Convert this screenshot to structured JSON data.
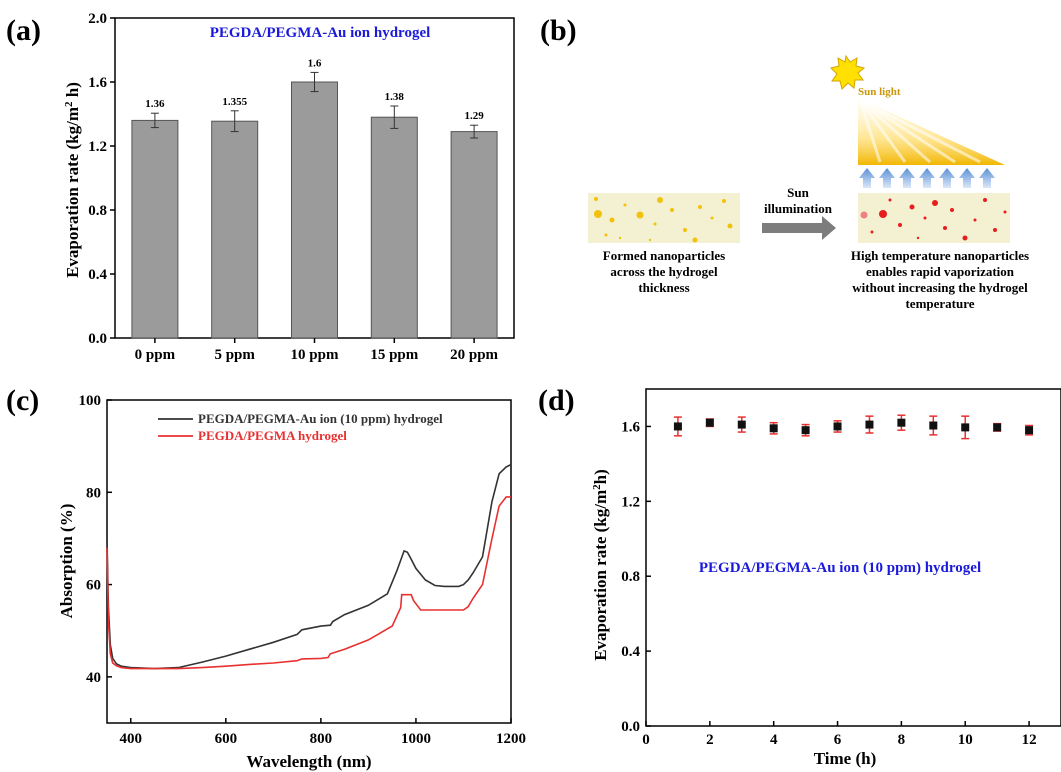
{
  "panels": {
    "a": {
      "label": "(a)",
      "title": "PEGDA/PEGMA-Au ion hydrogel",
      "y_title_main": "Evaporation rate (kg/m",
      "y_title_sup": "2",
      "y_title_end": " h)"
    },
    "b": {
      "label": "(b)",
      "sun_label": "Sun light",
      "arrow_label": [
        "Sun",
        "illumination"
      ],
      "left_caption": [
        "Formed nanoparticles",
        "across the hydrogel",
        "thickness"
      ],
      "right_caption": [
        "High temperature nanoparticles",
        "enables rapid vaporization",
        "without increasing the hydrogel",
        "temperature"
      ]
    },
    "c": {
      "label": "(c)",
      "x_title": "Wavelength (nm)",
      "y_title": "Absorption (%)"
    },
    "d": {
      "label": "(d)",
      "x_title": "Time (h)",
      "y_title_main": "Evaporation rate (kg/m",
      "y_title_sup": "2",
      "y_title_end": "h)",
      "annotation": "PEGDA/PEGMA-Au ion (10 ppm) hydrogel"
    }
  },
  "chart_data": [
    {
      "panel": "a",
      "type": "bar",
      "title": "PEGDA/PEGMA-Au ion hydrogel",
      "ylabel": "Evaporation rate (kg/m2 h)",
      "categories": [
        "0 ppm",
        "5 ppm",
        "10 ppm",
        "15 ppm",
        "20 ppm"
      ],
      "values": [
        1.36,
        1.355,
        1.6,
        1.38,
        1.29
      ],
      "data_labels": [
        "1.36",
        "1.355",
        "1.6",
        "1.38",
        "1.29"
      ],
      "errors": [
        0.045,
        0.065,
        0.06,
        0.07,
        0.04
      ],
      "ylim": [
        0,
        2.0
      ],
      "yticks": [
        "0.0",
        "0.4",
        "0.8",
        "1.2",
        "1.6",
        "2.0"
      ],
      "color": "#9b9b9b"
    },
    {
      "panel": "c",
      "type": "line",
      "xlabel": "Wavelength (nm)",
      "ylabel": "Absorption (%)",
      "xlim": [
        350,
        1200
      ],
      "ylim": [
        30,
        100
      ],
      "xticks": [
        "400",
        "600",
        "800",
        "1000",
        "1200"
      ],
      "yticks": [
        "40",
        "60",
        "80",
        "100"
      ],
      "legend_position": "top-left",
      "series": [
        {
          "name": "PEGDA/PEGMA-Au ion (10 ppm) hydrogel",
          "color": "#333333",
          "x": [
            350,
            353,
            357,
            362,
            370,
            380,
            400,
            450,
            500,
            550,
            600,
            650,
            700,
            750,
            760,
            800,
            820,
            825,
            850,
            900,
            940,
            960,
            975,
            982,
            990,
            1000,
            1020,
            1040,
            1060,
            1090,
            1100,
            1110,
            1120,
            1140,
            1160,
            1175,
            1190,
            1200
          ],
          "y": [
            70,
            55,
            47,
            44,
            42.8,
            42.3,
            42,
            41.8,
            42,
            43.2,
            44.5,
            46,
            47.5,
            49.2,
            50.2,
            51,
            51.2,
            52,
            53.5,
            55.5,
            58,
            63,
            67.3,
            67,
            65.5,
            63.5,
            61,
            59.8,
            59.6,
            59.6,
            60,
            61,
            62.5,
            66,
            78,
            84,
            85.5,
            86
          ]
        },
        {
          "name": "PEGDA/PEGMA hydrogel",
          "color": "#e83030",
          "x": [
            350,
            353,
            357,
            362,
            370,
            380,
            400,
            450,
            500,
            550,
            600,
            650,
            700,
            750,
            760,
            800,
            815,
            820,
            850,
            900,
            950,
            968,
            970,
            990,
            995,
            1010,
            1040,
            1080,
            1100,
            1110,
            1120,
            1140,
            1160,
            1175,
            1190,
            1200
          ],
          "y": [
            68,
            52,
            45,
            43,
            42.4,
            42,
            41.8,
            41.8,
            41.8,
            42,
            42.3,
            42.7,
            43,
            43.5,
            43.9,
            44,
            44.2,
            45,
            46,
            48,
            51,
            55,
            57.8,
            57.8,
            56.5,
            54.5,
            54.5,
            54.5,
            54.5,
            55.2,
            57,
            60,
            70,
            77,
            79,
            79
          ]
        }
      ]
    },
    {
      "panel": "d",
      "type": "scatter",
      "xlabel": "Time (h)",
      "ylabel": "Evaporation rate (kg/m2h)",
      "xlim": [
        0,
        13
      ],
      "ylim": [
        0,
        1.8
      ],
      "xticks": [
        "0",
        "2",
        "4",
        "6",
        "8",
        "10",
        "12"
      ],
      "yticks": [
        "0.0",
        "0.4",
        "0.8",
        "1.2",
        "1.6"
      ],
      "marker_color": "#111111",
      "error_color": "#e83030",
      "x": [
        1,
        2,
        3,
        4,
        5,
        6,
        7,
        8,
        9,
        10,
        11,
        12
      ],
      "y": [
        1.6,
        1.62,
        1.61,
        1.59,
        1.58,
        1.6,
        1.61,
        1.62,
        1.605,
        1.595,
        1.595,
        1.58
      ],
      "errors": [
        0.05,
        0.02,
        0.04,
        0.03,
        0.03,
        0.03,
        0.045,
        0.04,
        0.05,
        0.06,
        0.02,
        0.025
      ]
    }
  ]
}
